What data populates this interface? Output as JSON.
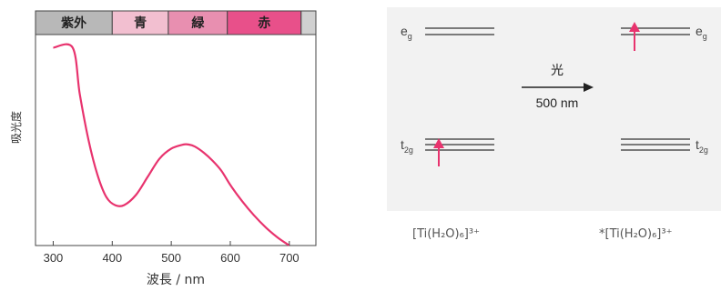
{
  "colors": {
    "accent": "#e8336e",
    "band_uv": "#b8b8b8",
    "band_blue": "#f2bfd0",
    "band_green": "#e88fb0",
    "band_red": "#e8508a",
    "band_ir": "#d0d0d0",
    "electron_arrow": "#e8336e"
  },
  "chart_data": {
    "type": "line",
    "title": "",
    "xlabel": "波長 / nm",
    "ylabel": "吸光度",
    "xlim": [
      270,
      745
    ],
    "ylim": [
      0,
      1
    ],
    "xticks": [
      300,
      400,
      500,
      600,
      700
    ],
    "series": [
      {
        "x": [
          300,
          333,
          345,
          360,
          375,
          390,
          405,
          420,
          440,
          460,
          480,
          500,
          520,
          530,
          540,
          555,
          570,
          585,
          600,
          620,
          640,
          660,
          680,
          700
        ],
        "values": [
          0.98,
          0.98,
          0.75,
          0.52,
          0.35,
          0.24,
          0.2,
          0.2,
          0.25,
          0.34,
          0.43,
          0.48,
          0.5,
          0.5,
          0.49,
          0.46,
          0.42,
          0.37,
          0.3,
          0.22,
          0.15,
          0.09,
          0.04,
          0.0
        ]
      }
    ],
    "bands": [
      {
        "label": "紫外",
        "from": 270,
        "to": 400
      },
      {
        "label": "青",
        "from": 400,
        "to": 495
      },
      {
        "label": "緑",
        "from": 495,
        "to": 595
      },
      {
        "label": "赤",
        "from": 595,
        "to": 720
      },
      {
        "label": "",
        "from": 720,
        "to": 745
      }
    ]
  },
  "diagram": {
    "eg_label_main": "e",
    "eg_label_sub": "g",
    "t2g_label_main": "t",
    "t2g_label_sub": "2g",
    "light_label": "光",
    "wavelength_label": "500 nm",
    "ground_formula": "[Ti(H₂O)₆]³⁺",
    "excited_formula": "*[Ti(H₂O)₆]³⁺"
  }
}
